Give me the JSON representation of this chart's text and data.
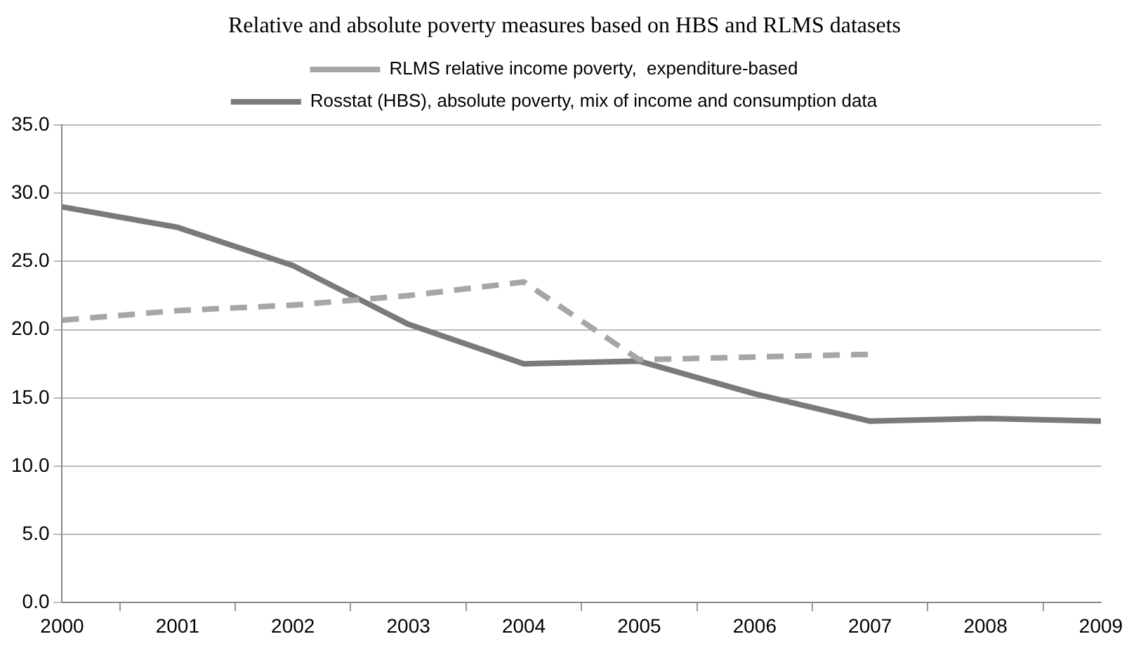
{
  "chart_data": {
    "type": "line",
    "title": "Relative and absolute poverty measures based on HBS and RLMS datasets",
    "categories": [
      "2000",
      "2001",
      "2002",
      "2003",
      "2004",
      "2005",
      "2006",
      "2007",
      "2008",
      "2009"
    ],
    "series": [
      {
        "name": "RLMS relative income poverty,  expenditure-based",
        "color": "#a6a6a6",
        "line_style": "dashed",
        "values": [
          20.7,
          21.4,
          21.8,
          22.5,
          23.5,
          17.8,
          18.0,
          18.2,
          null,
          null
        ]
      },
      {
        "name": "Rosstat (HBS), absolute poverty, mix of income and consumption data",
        "color": "#7a7a7a",
        "line_style": "solid",
        "values": [
          29.0,
          27.5,
          24.7,
          20.4,
          17.5,
          17.7,
          15.3,
          13.3,
          13.5,
          13.3
        ]
      }
    ],
    "ylim": [
      0,
      35
    ],
    "yticks": [
      {
        "value": 0,
        "label": "0.0"
      },
      {
        "value": 5,
        "label": "5.0"
      },
      {
        "value": 10,
        "label": "10.0"
      },
      {
        "value": 15,
        "label": "15.0"
      },
      {
        "value": 20,
        "label": "20.0"
      },
      {
        "value": 25,
        "label": "25.0"
      },
      {
        "value": 30,
        "label": "30.0"
      },
      {
        "value": 35,
        "label": "35.0"
      }
    ],
    "grid": "y",
    "legend": "top",
    "marker": "none"
  }
}
